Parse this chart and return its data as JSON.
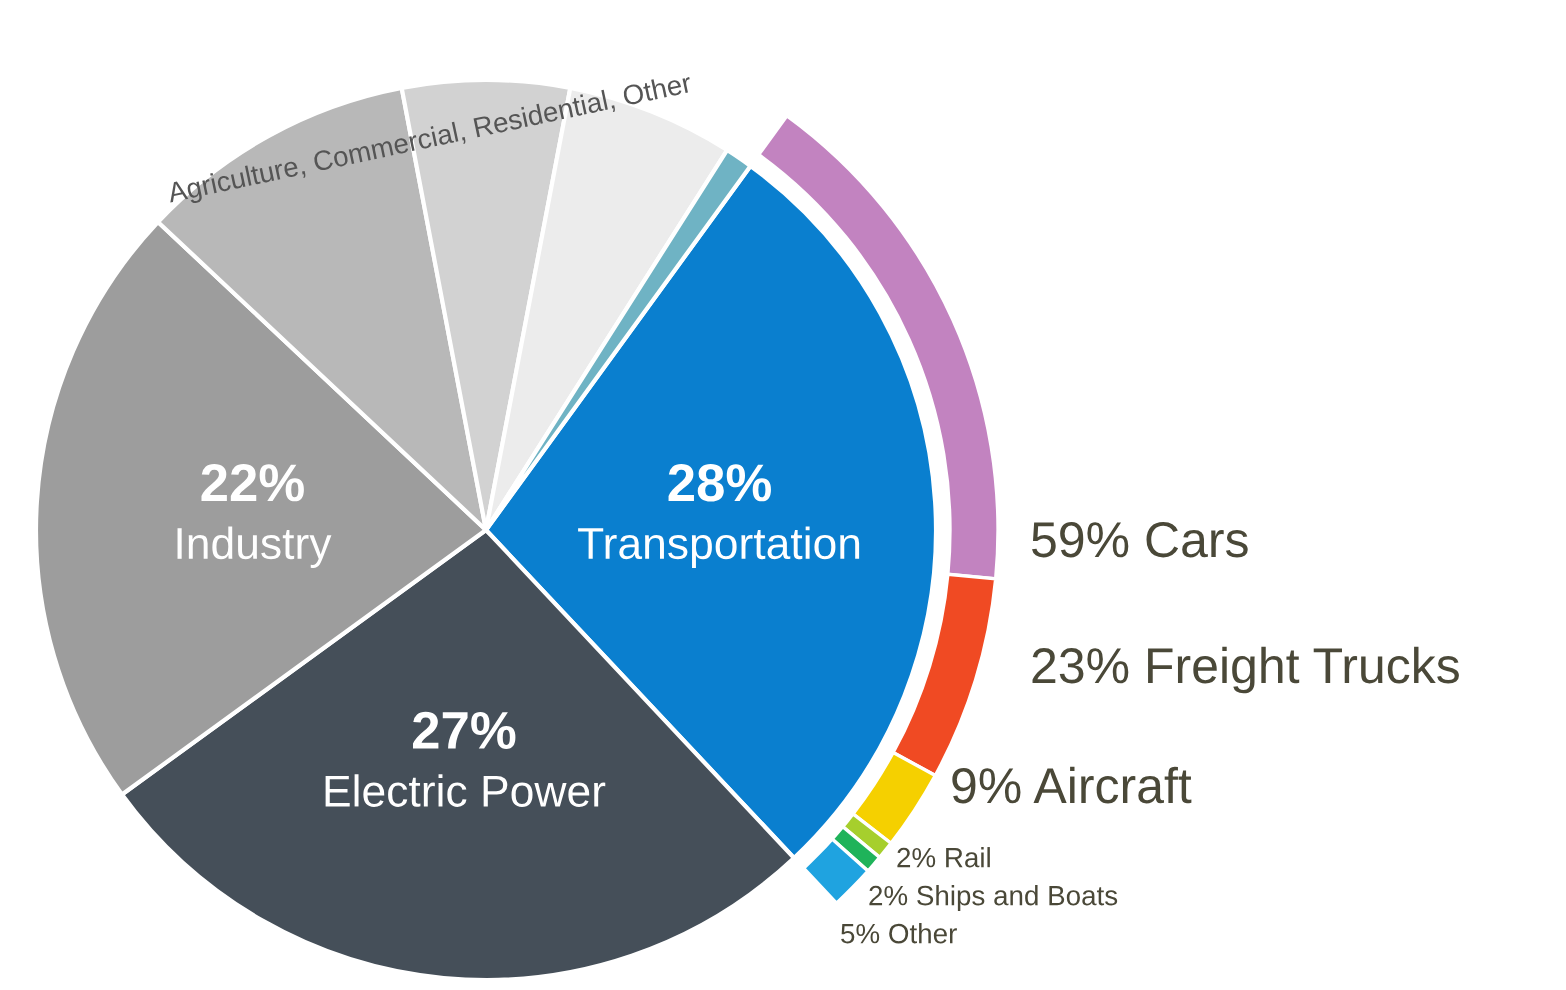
{
  "chart_data": {
    "type": "pie",
    "legend": false,
    "annotations": [
      "Agriculture, Commercial, Residential, Other"
    ],
    "categories": [
      "Transportation",
      "Electric Power",
      "Industry",
      null,
      null,
      null,
      null,
      "Cars",
      "Freight Trucks",
      "Aircraft",
      "Rail",
      "Ships and Boats",
      "Other"
    ],
    "series": [
      {
        "values": [
          28,
          27,
          22,
          10,
          6,
          6,
          1,
          null,
          null,
          null,
          null,
          null,
          null
        ],
        "value_labels": [
          "28%",
          "27%",
          "22%",
          null,
          null,
          null,
          null,
          null,
          null,
          null,
          null,
          null,
          null
        ],
        "colors": [
          "#0a7fcf",
          "#454f59",
          "#9d9d9d",
          "#b8b8b8",
          "#d2d2d2",
          "#ececec",
          "#6fb3c4",
          null,
          null,
          null,
          null,
          null,
          null
        ]
      },
      {
        "type": "donut",
        "values": [
          null,
          null,
          null,
          null,
          null,
          null,
          null,
          59,
          23,
          9,
          2,
          2,
          5
        ],
        "value_labels": [
          null,
          null,
          null,
          null,
          null,
          null,
          null,
          "59%",
          "23%",
          "9%",
          "2%",
          "2%",
          "5%"
        ],
        "colors": [
          null,
          null,
          null,
          null,
          null,
          null,
          null,
          "#c283c0",
          "#f04a23",
          "#f5d000",
          "#a6cf2d",
          "#1fb35a",
          "#1fa3e0"
        ]
      }
    ]
  }
}
